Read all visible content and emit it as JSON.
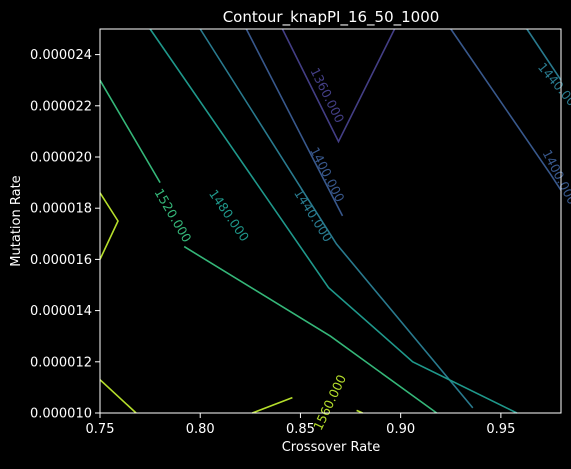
{
  "chart_data": {
    "type": "contour",
    "title": "Contour_knapPI_16_50_1000",
    "xlabel": "Crossover Rate",
    "ylabel": "Mutation Rate",
    "xlim": [
      0.75,
      0.98
    ],
    "ylim": [
      1e-05,
      2.5e-05
    ],
    "x_ticks": [
      0.75,
      0.8,
      0.85,
      0.9,
      0.95
    ],
    "x_tick_labels": [
      "0.75",
      "0.80",
      "0.85",
      "0.90",
      "0.95"
    ],
    "y_ticks": [
      1e-05,
      1.2e-05,
      1.4e-05,
      1.6e-05,
      1.8e-05,
      2e-05,
      2.2e-05,
      2.4e-05
    ],
    "y_tick_labels": [
      "0.000010",
      "0.000012",
      "0.000014",
      "0.000016",
      "0.000018",
      "0.000020",
      "0.000022",
      "0.000024"
    ],
    "grid": false,
    "levels": [
      {
        "label": "1360.000",
        "color": "#433e85",
        "lines": [
          [
            [
              0.841,
              2.5e-05
            ],
            [
              0.869,
              2.06e-05
            ],
            [
              0.897,
              2.5e-05
            ]
          ]
        ],
        "label_at": [
          0.863,
          2.24e-05
        ]
      },
      {
        "label": "1400.000",
        "color": "#38588c",
        "lines": [
          [
            [
              0.823,
              2.5e-05
            ],
            [
              0.871,
              1.77e-05
            ]
          ],
          [
            [
              0.925,
              2.5e-05
            ],
            [
              0.975,
              1.93e-05
            ],
            [
              0.98,
              1.87e-05
            ]
          ]
        ],
        "label_at": [
          0.863,
          1.93e-05
        ],
        "extra_labels": [
          [
            0.979,
            1.92e-05
          ]
        ]
      },
      {
        "label": "1440.000",
        "color": "#297a8e",
        "lines": [
          [
            [
              0.8,
              2.5e-05
            ],
            [
              0.868,
              1.66e-05
            ],
            [
              0.936,
              1.02e-05
            ]
          ],
          [
            [
              0.963,
              2.5e-05
            ],
            [
              0.98,
              2.3e-05
            ]
          ]
        ],
        "label_at": [
          0.856,
          1.77e-05
        ],
        "extra_labels": [
          [
            0.979,
            2.27e-05
          ]
        ]
      },
      {
        "label": "1480.000",
        "color": "#1f988b",
        "lines": [
          [
            [
              0.775,
              2.5e-05
            ],
            [
              0.864,
              1.49e-05
            ],
            [
              0.906,
              1.2e-05
            ],
            [
              0.958,
              1e-05
            ]
          ]
        ],
        "label_at": [
          0.814,
          1.77e-05
        ]
      },
      {
        "label": "1520.000",
        "color": "#35b779",
        "lines": [
          [
            [
              0.75,
              2.3e-05
            ],
            [
              0.78,
              1.9e-05
            ]
          ],
          [
            [
              0.792,
              1.65e-05
            ],
            [
              0.865,
              1.3e-05
            ],
            [
              0.918,
              1e-05
            ]
          ]
        ],
        "label_at": [
          0.786,
          1.77e-05
        ]
      },
      {
        "label": "1560.000",
        "color": "#b5de2b",
        "lines": [
          [
            [
              0.75,
              1.86e-05
            ],
            [
              0.759,
              1.75e-05
            ],
            [
              0.75,
              1.6e-05
            ]
          ],
          [
            [
              0.75,
              1.13e-05
            ],
            [
              0.768,
              1e-05
            ]
          ],
          [
            [
              0.826,
              1e-05
            ],
            [
              0.846,
              1.06e-05
            ]
          ],
          [
            [
              0.878,
              1.01e-05
            ],
            [
              0.881,
              1e-05
            ]
          ]
        ],
        "label_at": [
          0.865,
          1.04e-05
        ]
      }
    ]
  }
}
